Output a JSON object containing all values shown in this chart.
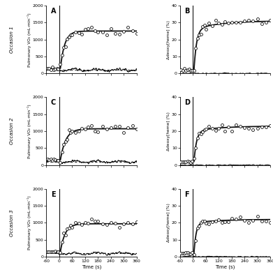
{
  "occasions": [
    {
      "label": "Occasion 1",
      "panel_left": "A",
      "panel_right": "B",
      "vo2_baseline": 150,
      "vo2_amplitude": 1100,
      "vo2_td": 5,
      "vo2_tau": 20,
      "vo2_residual_amp": 80,
      "vo2_residual_base": 100,
      "deoxy_baseline": 2,
      "deoxy_amplitude": 24,
      "deoxy_td": 5,
      "deoxy_tau": 12,
      "deoxy_slow_amp": 5,
      "deoxy_slow_tau": 120
    },
    {
      "label": "Occasion 2",
      "panel_left": "C",
      "panel_right": "D",
      "vo2_baseline": 150,
      "vo2_amplitude": 920,
      "vo2_td": 5,
      "vo2_tau": 25,
      "vo2_residual_amp": 70,
      "vo2_residual_base": 100,
      "deoxy_baseline": 2,
      "deoxy_amplitude": 18,
      "deoxy_td": 5,
      "deoxy_tau": 12,
      "deoxy_slow_amp": 3,
      "deoxy_slow_tau": 120
    },
    {
      "label": "Occasion 3",
      "panel_left": "E",
      "panel_right": "F",
      "vo2_baseline": 150,
      "vo2_amplitude": 820,
      "vo2_td": 5,
      "vo2_tau": 22,
      "vo2_residual_amp": 65,
      "vo2_residual_base": 100,
      "deoxy_baseline": 2,
      "deoxy_amplitude": 18,
      "deoxy_td": 5,
      "deoxy_tau": 10,
      "deoxy_slow_amp": 2,
      "deoxy_slow_tau": 120
    }
  ],
  "xlim": [
    -60,
    360
  ],
  "xticks": [
    -60,
    0,
    60,
    120,
    180,
    240,
    300,
    360
  ],
  "xticklabels": [
    "-60",
    "0",
    "60",
    "120",
    "180",
    "240",
    "300",
    "360"
  ],
  "vo2_ylim": [
    0,
    2000
  ],
  "vo2_yticks": [
    0,
    500,
    1000,
    1500,
    2000
  ],
  "deoxy_ylim": [
    0,
    40
  ],
  "deoxy_yticks": [
    0,
    10,
    20,
    30,
    40
  ],
  "xlabel": "Time (s)",
  "vo2_ylabel": "Pulmonary VO₂ (mL·min⁻¹)",
  "deoxy_ylabel": "Δdeoxy[heme] (%)",
  "bg_color": "#ffffff",
  "line_color": "#111111",
  "scatter_facecolor": "white",
  "scatter_edgecolor": "#111111"
}
